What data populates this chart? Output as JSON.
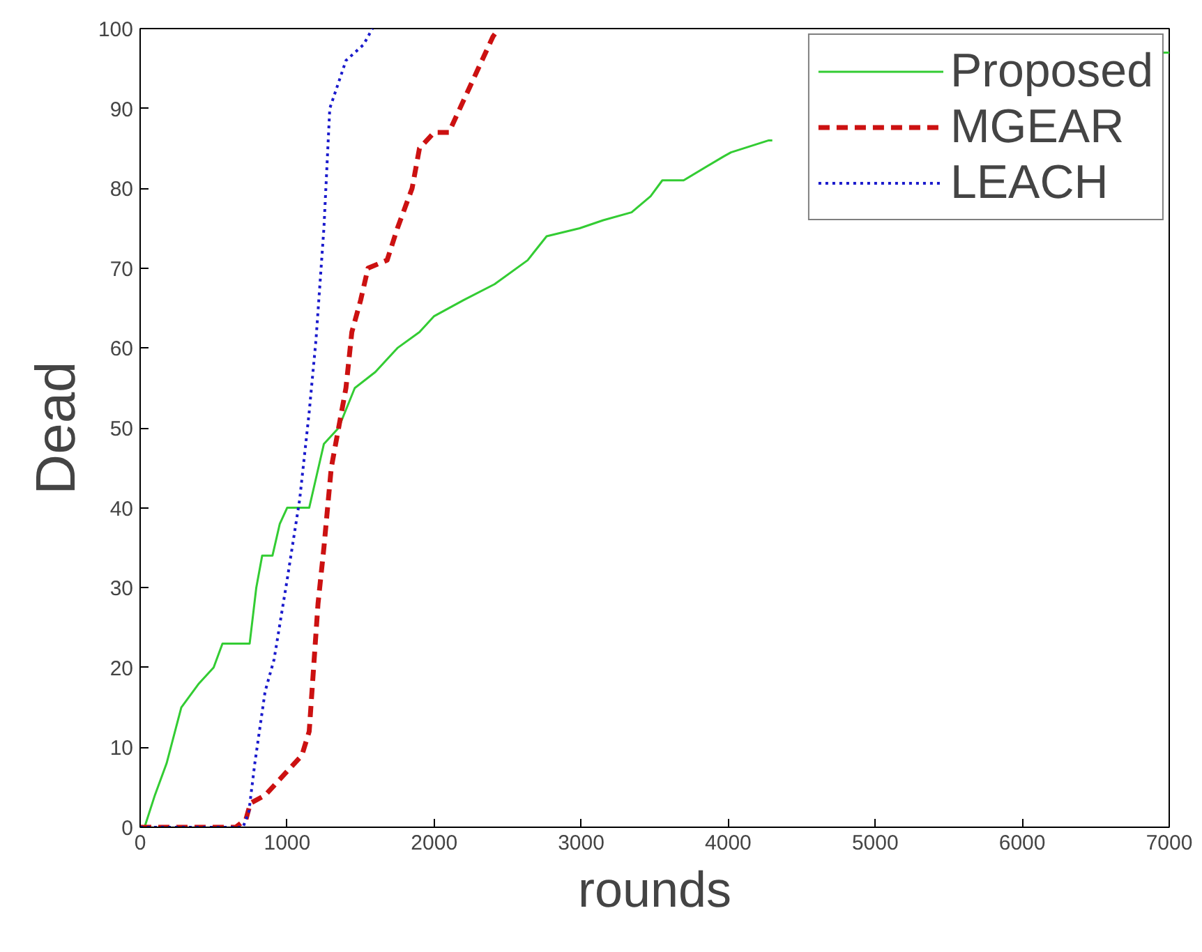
{
  "chart_data": {
    "type": "line",
    "xlabel": "rounds",
    "ylabel": "Dead",
    "xlim": [
      0,
      7000
    ],
    "ylim": [
      0,
      100
    ],
    "xticks": [
      0,
      1000,
      2000,
      3000,
      4000,
      5000,
      6000,
      7000
    ],
    "yticks": [
      0,
      10,
      20,
      30,
      40,
      50,
      60,
      70,
      80,
      90,
      100
    ],
    "grid": false,
    "legend": "top right",
    "series": [
      {
        "name": "Proposed",
        "color": "#33cc33",
        "line_style": "solid",
        "x": [
          0,
          30,
          100,
          180,
          280,
          400,
          500,
          560,
          745,
          790,
          830,
          900,
          950,
          1000,
          1150,
          1200,
          1250,
          1350,
          1460,
          1600,
          1750,
          1900,
          2000,
          2200,
          2411,
          2636,
          2765,
          2990,
          3150,
          3343,
          3472,
          3552,
          3697,
          3970,
          4019,
          4276,
          4300,
          6900,
          6950,
          7000
        ],
        "values": [
          0,
          0,
          4,
          8,
          15,
          18,
          20,
          23,
          23,
          30,
          34,
          34,
          38,
          40,
          40,
          44,
          48,
          50,
          55,
          57,
          60,
          62,
          64,
          66,
          68,
          71,
          74,
          75,
          76,
          77,
          79,
          81,
          81,
          84,
          84.5,
          86,
          86,
          null,
          97,
          97
        ]
      },
      {
        "name": "MGEAR",
        "color": "#cc1111",
        "line_style": "dashed",
        "x": [
          0,
          650,
          720,
          750,
          850,
          950,
          1100,
          1150,
          1180,
          1210,
          1250,
          1300,
          1350,
          1400,
          1440,
          1500,
          1550,
          1680,
          1750,
          1850,
          1900,
          2000,
          2100,
          2200,
          2300,
          2400,
          2440
        ],
        "values": [
          0,
          0,
          1,
          3,
          4,
          6,
          9,
          12,
          20,
          28,
          35,
          45,
          50,
          55,
          62,
          66,
          70,
          71,
          75,
          80,
          85,
          87,
          87,
          91,
          95,
          99,
          100
        ]
      },
      {
        "name": "LEACH",
        "color": "#1a1acc",
        "line_style": "dotted",
        "x": [
          0,
          700,
          740,
          780,
          850,
          911,
          1000,
          1085,
          1150,
          1196,
          1250,
          1290,
          1400,
          1520,
          1580
        ],
        "values": [
          0,
          0,
          2,
          8,
          17,
          21,
          31,
          41,
          52,
          61,
          75,
          90,
          96,
          98,
          100
        ]
      }
    ]
  }
}
